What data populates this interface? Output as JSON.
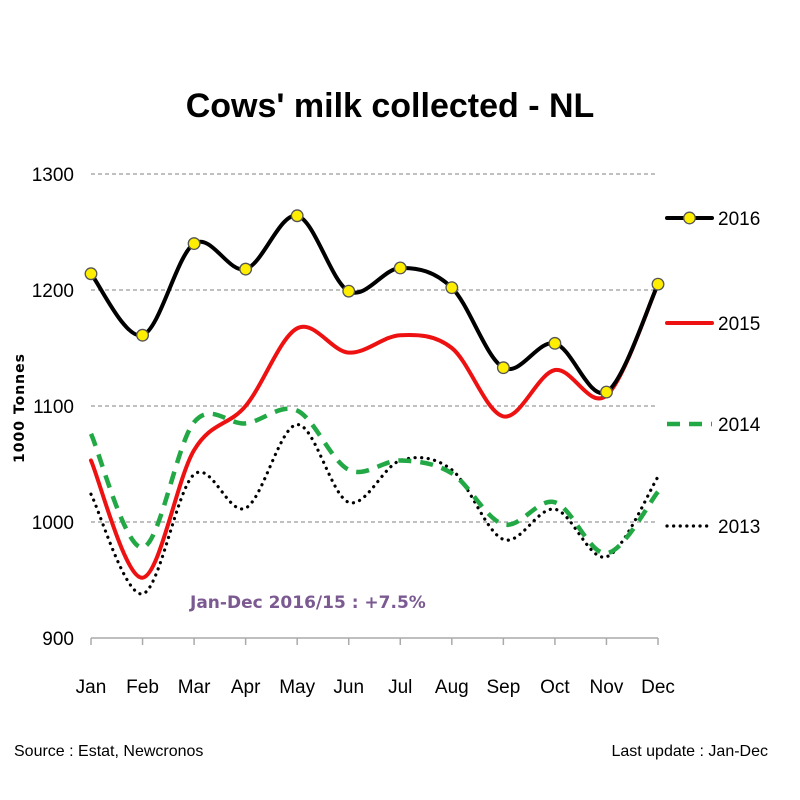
{
  "chart_data": {
    "type": "line",
    "title": "Cows' milk collected   -   NL",
    "ylabel": "1000 Tonnes",
    "xlabel": "",
    "ylim": [
      900,
      1300
    ],
    "yticks": [
      "900",
      "1000",
      "1100",
      "1200",
      "1300"
    ],
    "categories": [
      "Jan",
      "Feb",
      "Mar",
      "Apr",
      "May",
      "Jun",
      "Jul",
      "Aug",
      "Sep",
      "Oct",
      "Nov",
      "Dec"
    ],
    "grid": "horizontal dashed",
    "legend_position": "right",
    "series": [
      {
        "name": "2016",
        "color": "#000000",
        "marker": "#ffee00",
        "style": "solid-markers",
        "values": [
          1214,
          1161,
          1240,
          1218,
          1264,
          1199,
          1219,
          1202,
          1133,
          1154,
          1112,
          1205
        ]
      },
      {
        "name": "2015",
        "color": "#ee1111",
        "style": "solid",
        "values": [
          1053,
          952,
          1062,
          1100,
          1167,
          1146,
          1161,
          1150,
          1091,
          1131,
          1109,
          1205
        ]
      },
      {
        "name": "2014",
        "color": "#22a844",
        "style": "dashed",
        "values": [
          1076,
          978,
          1086,
          1085,
          1096,
          1045,
          1053,
          1042,
          998,
          1017,
          973,
          1026
        ]
      },
      {
        "name": "2013",
        "color": "#000000",
        "style": "dotted",
        "values": [
          1024,
          938,
          1041,
          1012,
          1084,
          1017,
          1053,
          1045,
          985,
          1011,
          970,
          1039
        ]
      }
    ],
    "annotations": [
      {
        "text": "Jan-Dec 2016/15 :   +7.5%",
        "color": "#7b5a92"
      }
    ]
  },
  "footer": {
    "source": "Source : Estat, Newcronos",
    "last_update": "Last update : Jan-Dec"
  }
}
